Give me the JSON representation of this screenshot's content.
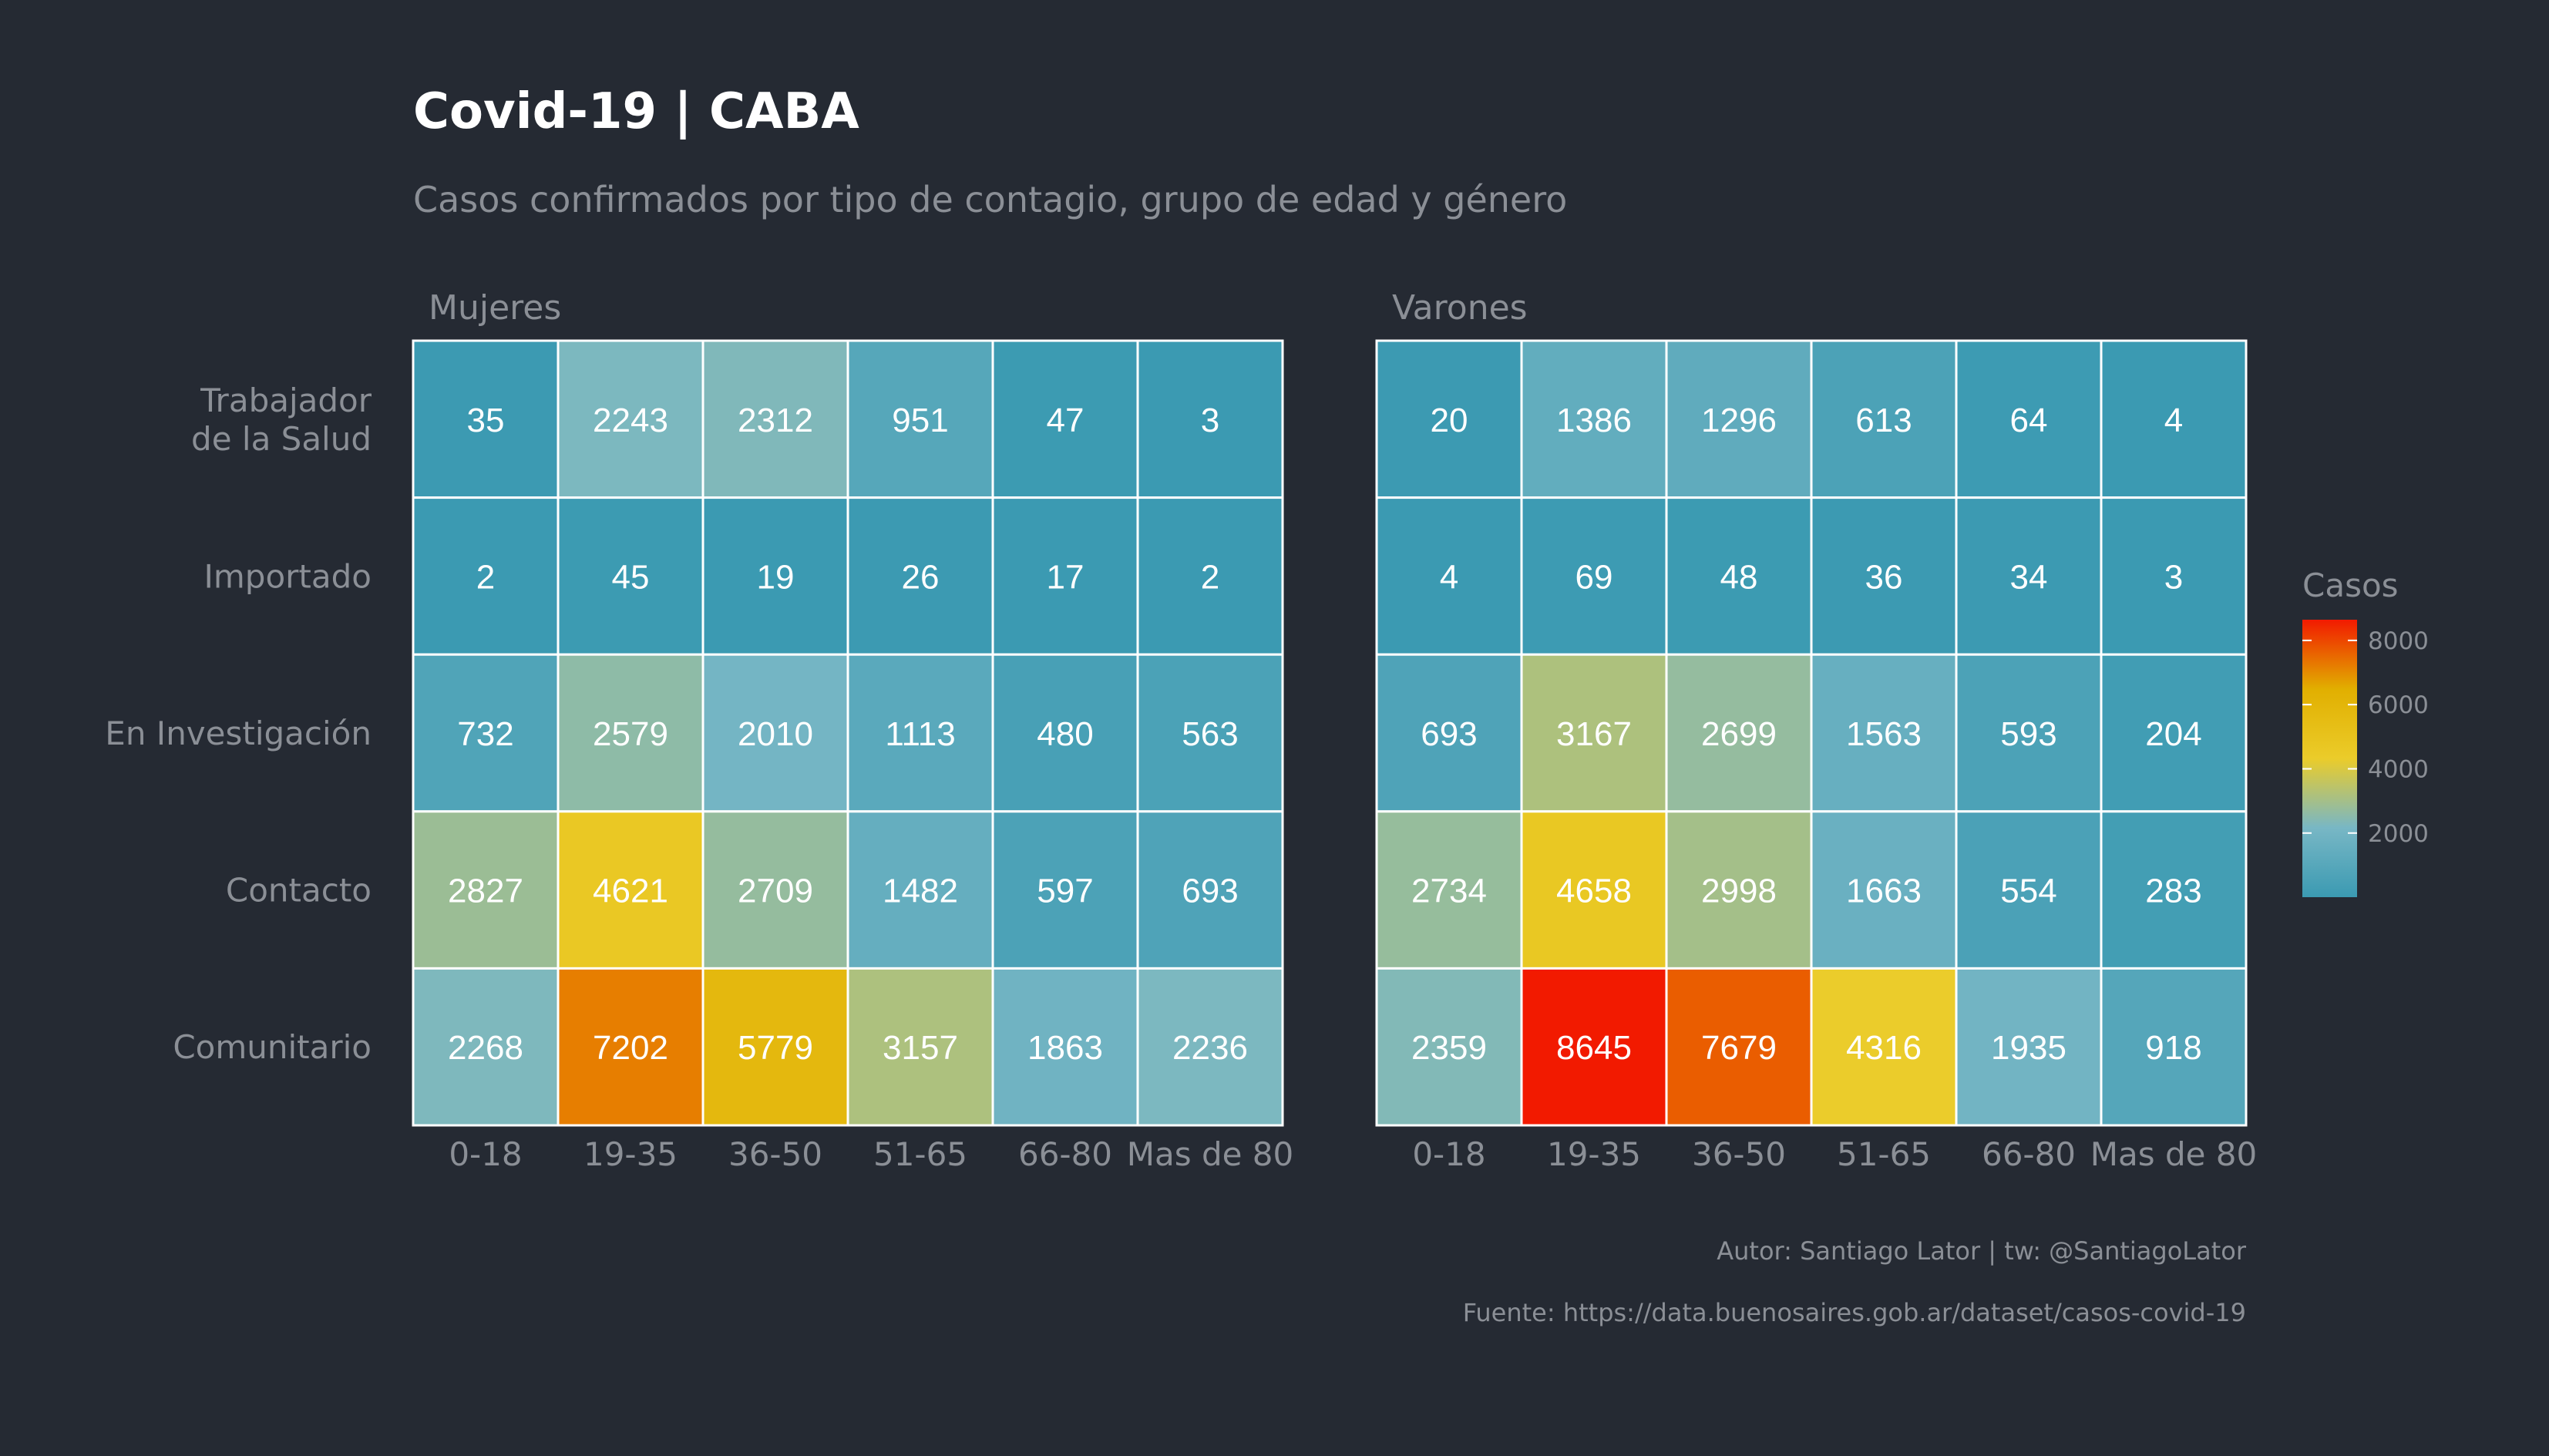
{
  "title": "Covid-19 | CABA",
  "subtitle": "Casos confirmados por tipo de contagio, grupo de edad y género",
  "caption_author": "Autor: Santiago Lator | tw: @SantiagoLator",
  "caption_source": "Fuente: https://data.buenosaires.gob.ar/dataset/casos-covid-19",
  "colors": {
    "background": "#252a33",
    "title": "#ffffff",
    "muted_text": "#8b8f96",
    "cell_border": "#ffffff",
    "scale": [
      "#3b9ab2",
      "#78b7c5",
      "#ebcc2a",
      "#e1af00",
      "#f21a00"
    ]
  },
  "chart_data": {
    "type": "heatmap",
    "title": "Covid-19 | CABA",
    "subtitle": "Casos confirmados por tipo de contagio, grupo de edad y género",
    "rows": [
      [
        "Trabajador",
        "de la Salud"
      ],
      [
        "Importado"
      ],
      [
        "En Investigación"
      ],
      [
        "Contacto"
      ],
      [
        "Comunitario"
      ]
    ],
    "columns": [
      "0-18",
      "19-35",
      "36-50",
      "51-65",
      "66-80",
      "Mas de 80"
    ],
    "facets": [
      {
        "name": "Mujeres",
        "values": [
          [
            35,
            2243,
            2312,
            951,
            47,
            3
          ],
          [
            2,
            45,
            19,
            26,
            17,
            2
          ],
          [
            732,
            2579,
            2010,
            1113,
            480,
            563
          ],
          [
            2827,
            4621,
            2709,
            1482,
            597,
            693
          ],
          [
            2268,
            7202,
            5779,
            3157,
            1863,
            2236
          ]
        ]
      },
      {
        "name": "Varones",
        "values": [
          [
            20,
            1386,
            1296,
            613,
            64,
            4
          ],
          [
            4,
            69,
            48,
            36,
            34,
            3
          ],
          [
            693,
            3167,
            2699,
            1563,
            593,
            204
          ],
          [
            2734,
            4658,
            2998,
            1663,
            554,
            283
          ],
          [
            2359,
            8645,
            7679,
            4316,
            1935,
            918
          ]
        ]
      }
    ],
    "legend": {
      "title": "Casos",
      "min": 2,
      "max": 8645,
      "ticks": [
        2000,
        4000,
        6000,
        8000
      ],
      "placement": "right"
    }
  }
}
